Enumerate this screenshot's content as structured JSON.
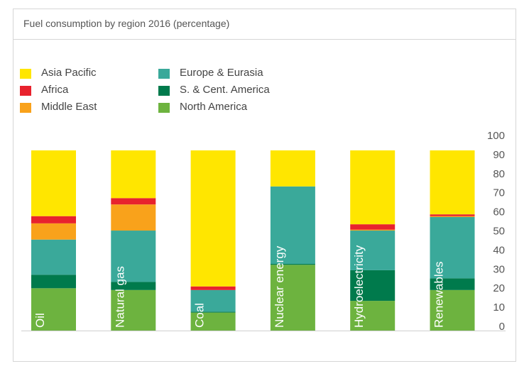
{
  "title": "Fuel consumption by region 2016 (percentage)",
  "chart_data": {
    "type": "bar",
    "stacked": true,
    "title": "Fuel consumption by region 2016 (percentage)",
    "categories": [
      "Oil",
      "Natural gas",
      "Coal",
      "Nuclear energy",
      "Hydroelectricity",
      "Renewables"
    ],
    "ylim": [
      0,
      100
    ],
    "yticks": [
      0,
      10,
      20,
      30,
      40,
      50,
      60,
      70,
      80,
      90,
      100
    ],
    "legend_position": "top-left",
    "grid": false,
    "series": [
      {
        "name": "North America",
        "color": "#6db33f",
        "values": [
          23.5,
          22.5,
          10,
          36.5,
          16.5,
          22.5
        ]
      },
      {
        "name": "S. & Cent. America",
        "color": "#007a4c",
        "values": [
          7.5,
          4.5,
          0.5,
          0.5,
          17,
          6.5
        ]
      },
      {
        "name": "Europe & Eurasia",
        "color": "#3aa99a",
        "values": [
          19.5,
          28.5,
          12,
          43,
          22,
          34
        ]
      },
      {
        "name": "Middle East",
        "color": "#f9a21b",
        "values": [
          9,
          14.5,
          0,
          0,
          0.5,
          0.5
        ]
      },
      {
        "name": "Africa",
        "color": "#e8222d",
        "values": [
          4,
          3.5,
          2,
          0,
          3,
          1
        ]
      },
      {
        "name": "Asia Pacific",
        "color": "#ffe600",
        "values": [
          36.5,
          26.5,
          75.5,
          20,
          41,
          35.5
        ]
      }
    ]
  },
  "legend": [
    {
      "name": "Asia Pacific",
      "color": "#ffe600"
    },
    {
      "name": "Africa",
      "color": "#e8222d"
    },
    {
      "name": "Middle East",
      "color": "#f9a21b"
    },
    {
      "name": "Europe & Eurasia",
      "color": "#3aa99a"
    },
    {
      "name": "S. & Cent. America",
      "color": "#007a4c"
    },
    {
      "name": "North America",
      "color": "#6db33f"
    }
  ]
}
